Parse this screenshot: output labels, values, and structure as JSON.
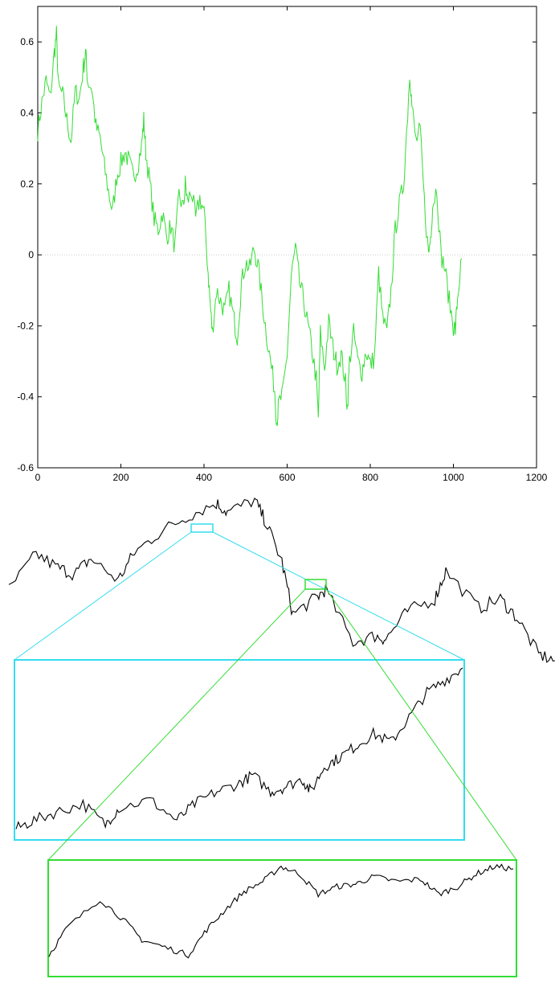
{
  "chart_data": [
    {
      "type": "line",
      "title": "",
      "xlabel": "",
      "ylabel": "",
      "xlim": [
        0,
        1200
      ],
      "ylim": [
        -0.6,
        0.7
      ],
      "xticks": [
        "0",
        "200",
        "400",
        "600",
        "800",
        "1000",
        "1200"
      ],
      "yticks": [
        "-0.6",
        "-0.4",
        "-0.2",
        "0",
        "0.2",
        "0.4",
        "0.6"
      ],
      "reference_line_y": 0,
      "grid": false,
      "line_color": "#33dd33",
      "series": [
        {
          "x": [
            0,
            10,
            20,
            30,
            40,
            45,
            50,
            60,
            70,
            80,
            90,
            100,
            110,
            115,
            120,
            130,
            140,
            150,
            160,
            170,
            180,
            190,
            200,
            210,
            220,
            230,
            240,
            250,
            255,
            260,
            270,
            280,
            290,
            300,
            310,
            320,
            330,
            340,
            350,
            355,
            360,
            370,
            380,
            390,
            400,
            410,
            415,
            420,
            430,
            440,
            450,
            460,
            470,
            480,
            490,
            500,
            510,
            520,
            530,
            540,
            550,
            560,
            570,
            575,
            580,
            590,
            600,
            610,
            620,
            630,
            640,
            650,
            660,
            670,
            675,
            680,
            690,
            700,
            710,
            720,
            730,
            740,
            745,
            750,
            760,
            770,
            780,
            790,
            800,
            810,
            820,
            830,
            840,
            850,
            860,
            870,
            880,
            890,
            895,
            900,
            910,
            920,
            930,
            940,
            945,
            950,
            960,
            970,
            980,
            990,
            1000,
            1005,
            1010,
            1020
          ],
          "values": [
            0.35,
            0.43,
            0.49,
            0.44,
            0.57,
            0.62,
            0.47,
            0.45,
            0.38,
            0.32,
            0.46,
            0.44,
            0.53,
            0.57,
            0.49,
            0.47,
            0.36,
            0.33,
            0.25,
            0.18,
            0.12,
            0.22,
            0.26,
            0.29,
            0.26,
            0.22,
            0.25,
            0.31,
            0.38,
            0.29,
            0.2,
            0.1,
            0.07,
            0.12,
            0.05,
            0.08,
            0.02,
            0.17,
            0.13,
            0.2,
            0.15,
            0.18,
            0.1,
            0.16,
            0.12,
            -0.05,
            -0.14,
            -0.22,
            -0.1,
            -0.13,
            -0.16,
            -0.1,
            -0.17,
            -0.23,
            -0.08,
            -0.02,
            -0.04,
            0.02,
            -0.03,
            -0.13,
            -0.22,
            -0.3,
            -0.38,
            -0.47,
            -0.42,
            -0.39,
            -0.28,
            -0.06,
            0.02,
            -0.08,
            -0.13,
            -0.2,
            -0.27,
            -0.35,
            -0.46,
            -0.22,
            -0.32,
            -0.19,
            -0.26,
            -0.31,
            -0.28,
            -0.36,
            -0.43,
            -0.3,
            -0.22,
            -0.3,
            -0.33,
            -0.27,
            -0.31,
            -0.29,
            -0.05,
            -0.18,
            -0.22,
            -0.1,
            0.07,
            0.14,
            0.2,
            0.4,
            0.52,
            0.42,
            0.32,
            0.35,
            0.15,
            0.0,
            0.05,
            0.14,
            0.19,
            0.0,
            -0.04,
            -0.13,
            -0.2,
            -0.21,
            -0.12,
            -0.01
          ]
        }
      ]
    },
    {
      "type": "line",
      "title": "",
      "xlabel": "",
      "ylabel": "",
      "line_color": "#000000",
      "series": [
        {
          "x": [
            0,
            0.05,
            0.09,
            0.12,
            0.15,
            0.2,
            0.23,
            0.28,
            0.33,
            0.38,
            0.4,
            0.45,
            0.47,
            0.5,
            0.52,
            0.56,
            0.58,
            0.63,
            0.67,
            0.69,
            0.73,
            0.78,
            0.8,
            0.86,
            0.9,
            0.93,
            0.97,
            1.0
          ],
          "values": [
            -0.9,
            0.25,
            -0.2,
            -0.4,
            0.1,
            -0.6,
            0.3,
            1.0,
            1.5,
            1.9,
            1.6,
            2.0,
            1.3,
            0.0,
            -1.7,
            -1.2,
            -0.9,
            -2.6,
            -2.4,
            -2.5,
            -1.6,
            -1.2,
            -0.3,
            -1.5,
            -1.2,
            -1.8,
            -3.0,
            -3.2
          ]
        }
      ]
    },
    {
      "type": "line",
      "title": "",
      "xlabel": "",
      "ylabel": "",
      "line_color": "#000000",
      "series": [
        {
          "x": [
            0,
            0.04,
            0.09,
            0.15,
            0.2,
            0.23,
            0.3,
            0.36,
            0.4,
            0.45,
            0.5,
            0.53,
            0.57,
            0.6,
            0.64,
            0.66,
            0.69,
            0.72,
            0.76,
            0.8,
            0.84,
            0.88,
            0.92,
            0.96,
            1.0
          ],
          "values": [
            -0.9,
            -0.7,
            -0.5,
            -0.3,
            -0.8,
            -0.4,
            -0.2,
            -0.7,
            -0.3,
            0.0,
            0.2,
            0.4,
            0.0,
            0.1,
            0.3,
            0.0,
            0.6,
            0.8,
            1.1,
            1.4,
            1.2,
            1.8,
            2.4,
            2.7,
            3.0
          ]
        }
      ]
    },
    {
      "type": "line",
      "title": "",
      "xlabel": "",
      "ylabel": "",
      "line_color": "#000000",
      "series": [
        {
          "x": [
            0,
            0.04,
            0.11,
            0.16,
            0.2,
            0.25,
            0.3,
            0.34,
            0.38,
            0.42,
            0.46,
            0.5,
            0.54,
            0.58,
            0.62,
            0.66,
            0.7,
            0.75,
            0.8,
            0.84,
            0.88,
            0.92,
            0.96,
            1.0
          ],
          "values": [
            -2.3,
            -1.2,
            -0.1,
            -0.9,
            -1.7,
            -2.0,
            -2.3,
            -1.3,
            -0.5,
            0.2,
            0.6,
            1.2,
            0.9,
            0.1,
            0.4,
            0.5,
            0.8,
            0.6,
            0.7,
            0.1,
            0.4,
            0.9,
            1.2,
            1.1
          ]
        }
      ]
    }
  ]
}
